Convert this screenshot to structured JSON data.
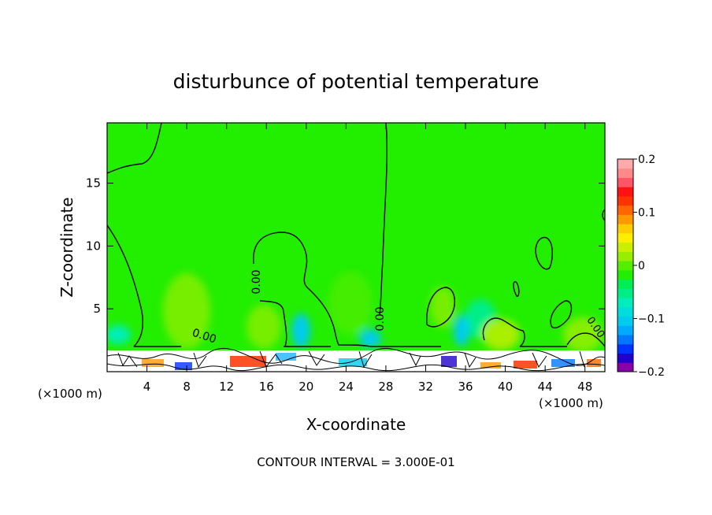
{
  "chart_data": {
    "type": "heatmap",
    "title": "disturbunce of potential temperature",
    "xlabel": "X-coordinate",
    "ylabel": "Z-coordinate",
    "x_unit_left": "(×1000 m)",
    "x_unit_right": "(×1000 m)",
    "xlim": [
      0,
      50
    ],
    "ylim": [
      0,
      19.8
    ],
    "x_ticks": [
      4,
      8,
      12,
      16,
      20,
      24,
      28,
      32,
      36,
      40,
      44,
      48
    ],
    "y_ticks": [
      5,
      10,
      15
    ],
    "footer": "CONTOUR INTERVAL = 3.000E-01",
    "contour_label": "0.00",
    "colorbar": {
      "range": [
        -0.2,
        0.2
      ],
      "tick_values": [
        0.2,
        0.1,
        0,
        -0.1,
        -0.2
      ],
      "tick_labels": [
        "0.2",
        "0.1",
        "0",
        "−0.1",
        "−0.2"
      ],
      "colors": [
        "#8800aa",
        "#2200cc",
        "#0033ff",
        "#0077ff",
        "#00aaff",
        "#00ccee",
        "#00dddd",
        "#00eebb",
        "#00ee88",
        "#00ee55",
        "#22ee00",
        "#55ee00",
        "#99ee00",
        "#ccee00",
        "#ffee00",
        "#ffcc00",
        "#ff9900",
        "#ff6600",
        "#ff3300",
        "#ff1111",
        "#ff5566",
        "#ff8888",
        "#ffaaaa"
      ]
    },
    "background_value": 0.02,
    "colors": {
      "background": "#22ee00",
      "axis": "#000000"
    }
  }
}
